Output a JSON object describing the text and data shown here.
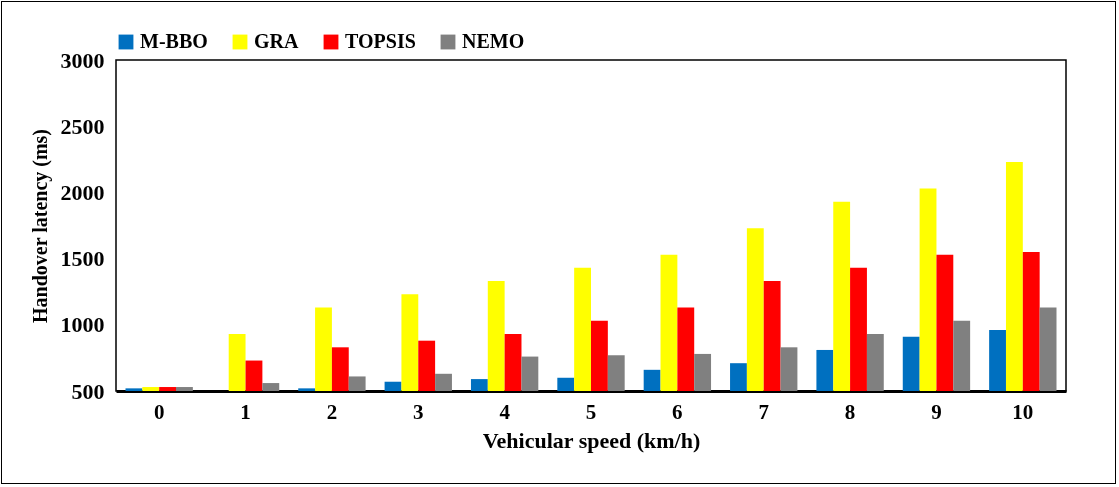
{
  "chart_data": {
    "type": "bar",
    "xlabel": "Vehicular speed (km/h)",
    "ylabel": "Handover latency (ms)",
    "categories": [
      "0",
      "1",
      "2",
      "3",
      "4",
      "5",
      "6",
      "7",
      "8",
      "9",
      "10"
    ],
    "series": [
      {
        "name": "M-BBO",
        "color": "#0070c0",
        "values": [
          520,
          null,
          520,
          570,
          590,
          600,
          660,
          710,
          810,
          910,
          960
        ]
      },
      {
        "name": "GRA",
        "color": "#ffff00",
        "values": [
          530,
          930,
          1130,
          1230,
          1330,
          1430,
          1530,
          1730,
          1930,
          2030,
          2230
        ]
      },
      {
        "name": "TOPSIS",
        "color": "#ff0000",
        "values": [
          530,
          730,
          830,
          880,
          930,
          1030,
          1130,
          1330,
          1430,
          1530,
          1550
        ]
      },
      {
        "name": "NEMO",
        "color": "#808080",
        "values": [
          530,
          560,
          610,
          630,
          760,
          770,
          780,
          830,
          930,
          1030,
          1130
        ]
      }
    ],
    "ylim": [
      500,
      3000
    ],
    "yticks": [
      500,
      1000,
      1500,
      2000,
      2500,
      3000
    ],
    "legend": "top"
  }
}
